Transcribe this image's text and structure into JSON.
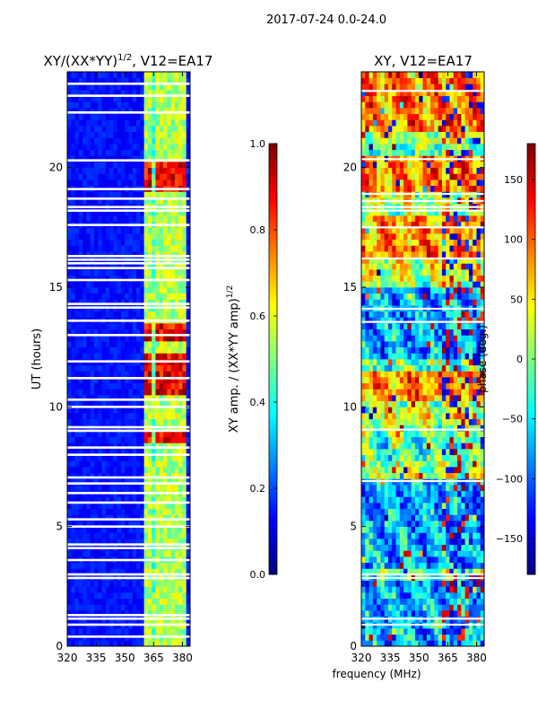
{
  "suptitle": "2017-07-24 0.0-24.0",
  "chart_data": [
    {
      "type": "heatmap",
      "title_main": "XY/(XX*YY)",
      "title_sup": "1/2",
      "title_rest": ", V12=EA17",
      "xlabel": "",
      "ylabel": "UT (hours)",
      "xlim": [
        320,
        384
      ],
      "ylim": [
        0,
        24
      ],
      "xticks": [
        320,
        335,
        350,
        365,
        380
      ],
      "yticks": [
        0,
        5,
        10,
        15,
        20
      ],
      "colormap": "jet",
      "colorbar": {
        "label_main": "XY amp. / (XX*YY amp)",
        "label_sup": "1/2",
        "range": [
          0.0,
          1.0
        ],
        "ticks": [
          0.0,
          0.2,
          0.4,
          0.6,
          0.8,
          1.0
        ],
        "tick_labels": [
          "0.0",
          "0.2",
          "0.4",
          "0.6",
          "0.8",
          "1.0"
        ]
      },
      "flagged_rows_hours": [
        0.4,
        0.9,
        1.15,
        1.3,
        2.85,
        3.0,
        3.6,
        4.1,
        4.25,
        5.0,
        5.3,
        6.0,
        6.4,
        6.8,
        7.05,
        8.0,
        8.3,
        9.0,
        9.15,
        10.0,
        10.3,
        11.2,
        11.9,
        13.0,
        13.6,
        14.15,
        14.3,
        15.3,
        15.8,
        16.0,
        16.15,
        16.3,
        17.6,
        18.2,
        18.35,
        18.7,
        19.1,
        20.3,
        22.3,
        23.0,
        23.5
      ],
      "bright_band_mhz": [
        360,
        382
      ],
      "high_amp_hours": [
        [
          8.5,
          8.9
        ],
        [
          10.5,
          12.2
        ],
        [
          12.8,
          13.5
        ],
        [
          19.0,
          20.3
        ]
      ],
      "high_amp_channels_mhz": [
        362,
        368,
        373,
        379
      ]
    },
    {
      "type": "heatmap",
      "title": "XY, V12=EA17",
      "xlabel": "frequency (MHz)",
      "ylabel": "",
      "xlim": [
        320,
        384
      ],
      "ylim": [
        0,
        24
      ],
      "xticks": [
        320,
        335,
        350,
        365,
        380
      ],
      "yticks": [
        0,
        5,
        10,
        15,
        20
      ],
      "colormap": "jet",
      "colorbar": {
        "label": "phase (deg.)",
        "range": [
          -180,
          180
        ],
        "ticks": [
          -150,
          -100,
          -50,
          0,
          50,
          100,
          150
        ],
        "tick_labels": [
          "−150",
          "−100",
          "−50",
          "0",
          "50",
          "100",
          "150"
        ]
      },
      "flagged_rows_hours": [
        0.9,
        1.15,
        2.85,
        3.0,
        6.9,
        9.05,
        13.55,
        14.1,
        16.2,
        17.5,
        18.2,
        18.35,
        18.6,
        18.9,
        20.35,
        23.2
      ],
      "positive_phase_regions": [
        [
          16.3,
          18.0
        ],
        [
          19.0,
          20.4
        ],
        [
          10.3,
          11.5
        ],
        [
          21.5,
          24.0
        ]
      ],
      "negative_phase_regions": [
        [
          0.0,
          2.7
        ],
        [
          3.2,
          7.0
        ],
        [
          12.0,
          15.0
        ]
      ]
    }
  ]
}
